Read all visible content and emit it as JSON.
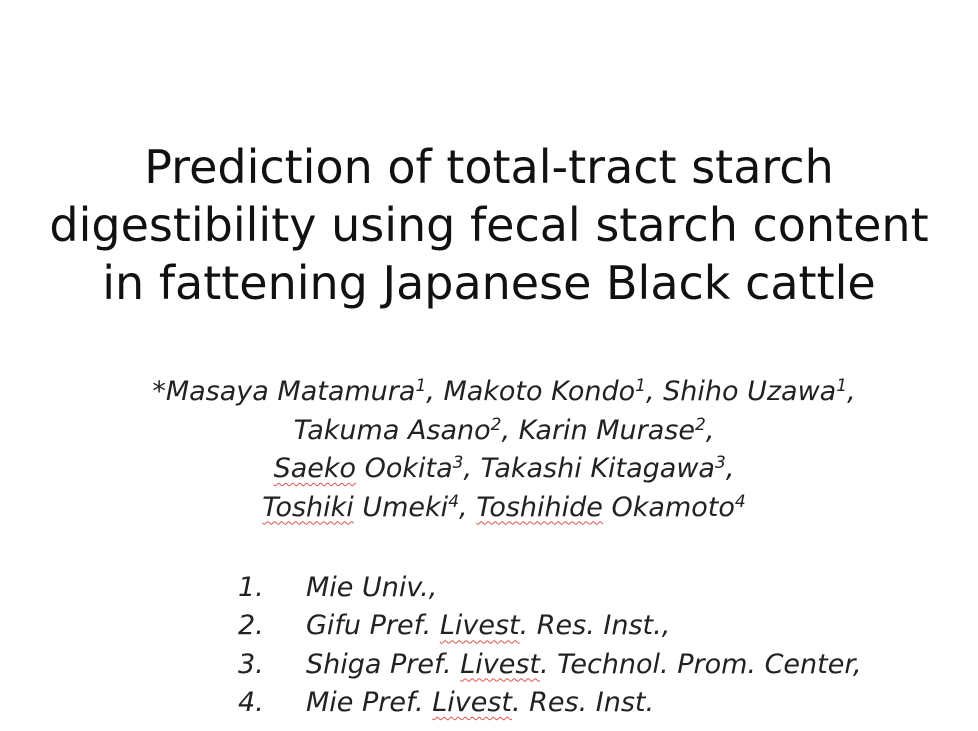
{
  "title": {
    "lines": [
      "Prediction of total-tract starch",
      "digestibility using fecal starch content",
      "in fattening Japanese Black cattle"
    ]
  },
  "authors": {
    "row1": {
      "a1": "*Masaya Matamura",
      "a1_sup": "1",
      "sep1": ", ",
      "a2": "Makoto Kondo",
      "a2_sup": "1",
      "sep2": ", ",
      "a3": "Shiho Uzawa",
      "a3_sup": "1",
      "end": ","
    },
    "row2": {
      "a1": "Takuma Asano",
      "a1_sup": "2",
      "sep1": ", ",
      "a2": "Karin Murase",
      "a2_sup": "2",
      "end": ","
    },
    "row3": {
      "a1_first": "Saeko",
      "a1_last": " Ookita",
      "a1_sup": "3",
      "sep1": ", ",
      "a2": "Takashi Kitagawa",
      "a2_sup": "3",
      "end": ","
    },
    "row4": {
      "a1_first": "Toshiki",
      "a1_last": " Umeki",
      "a1_sup": "4",
      "sep1": ", ",
      "a2_first": "Toshihide",
      "a2_last": " Okamoto",
      "a2_sup": "4"
    }
  },
  "affiliations": [
    {
      "num": "1.",
      "pre": "Mie Univ.,",
      "flagged": "",
      "post": ""
    },
    {
      "num": "2.",
      "pre": "Gifu Pref. ",
      "flagged": "Livest",
      "post": ". Res. Inst.,"
    },
    {
      "num": "3.",
      "pre": "Shiga Pref. ",
      "flagged": "Livest",
      "post": ". Technol. Prom. Center,"
    },
    {
      "num": "4.",
      "pre": "Mie Pref. ",
      "flagged": "Livest",
      "post": ". Res. Inst."
    }
  ],
  "colors": {
    "text": "#1a1a1a",
    "spellcheck_underline": "#d9534f",
    "background": "#ffffff"
  }
}
